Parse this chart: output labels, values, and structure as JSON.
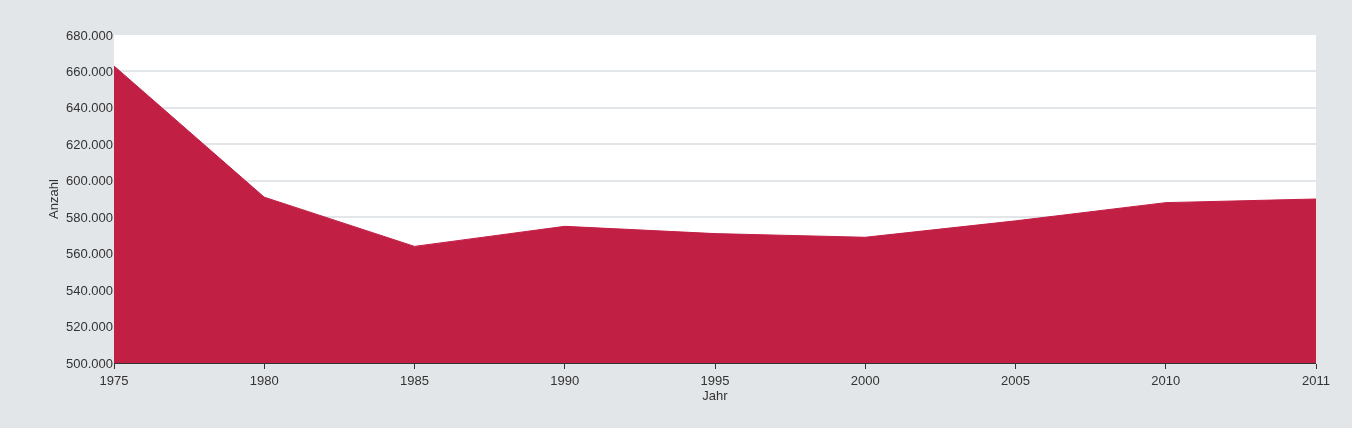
{
  "chart_data": {
    "type": "area",
    "xlabel": "Jahr",
    "ylabel": "Anzahl",
    "categories": [
      "1975",
      "1980",
      "1985",
      "1990",
      "1995",
      "2000",
      "2005",
      "2010",
      "2011"
    ],
    "series": [
      {
        "color": "#c21f45",
        "values": [
          663000,
          591000,
          564000,
          575000,
          571000,
          569000,
          578000,
          588000,
          590000
        ]
      }
    ],
    "ylim": [
      500000,
      680000
    ],
    "yticks": [
      {
        "value": 500000,
        "label": "500.000"
      },
      {
        "value": 520000,
        "label": "520.000"
      },
      {
        "value": 540000,
        "label": "540.000"
      },
      {
        "value": 560000,
        "label": "560.000"
      },
      {
        "value": 580000,
        "label": "580.000"
      },
      {
        "value": 600000,
        "label": "600.000"
      },
      {
        "value": 620000,
        "label": "620.000"
      },
      {
        "value": 640000,
        "label": "640.000"
      },
      {
        "value": 660000,
        "label": "660.000"
      },
      {
        "value": 680000,
        "label": "680.000"
      }
    ],
    "grid": "y"
  }
}
